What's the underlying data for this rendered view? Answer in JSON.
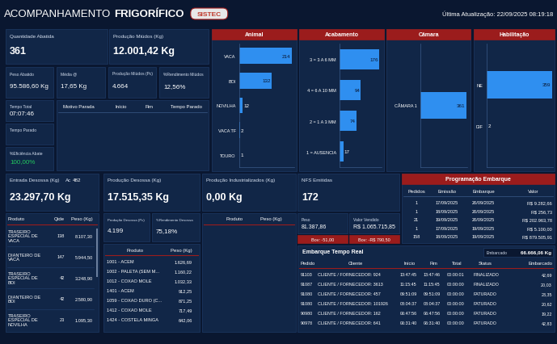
{
  "header": {
    "title": [
      "ACOMPANHAMENTO",
      "FRIGORÍFICO"
    ],
    "logo": "SISTEC",
    "last_update": "Última Atualização: 22/09/2025 08:19:18"
  },
  "cards": [
    {
      "label": "Quantidade Abatida",
      "value": 361
    },
    {
      "label": "Produção Miúdos (Kg)",
      "value": "12.001,42 Kg"
    },
    {
      "label": "Peso Abatido",
      "value": "95.586,60 Kg"
    },
    {
      "label": "Média @",
      "value": "17,65 Kg"
    },
    {
      "label": "Produção Miúdos (Pc)",
      "value": "4.664"
    },
    {
      "label": "%Rendimento Miúdos",
      "value": "12,56%"
    },
    {
      "label": "Tempo Total",
      "value": "07:07:46"
    },
    {
      "label": "Tempo Parado"
    },
    {
      "label": "%Eficiência Abate",
      "value": "100,00%",
      "color": "#22c55e"
    },
    {
      "label": "Entrada Desossa (Kg)",
      "value": "23.297,70 Kg",
      "note": "Ac",
      "note_value": 482
    },
    {
      "label": "Produção Desossa (Kg)",
      "value": "17.515,35 Kg"
    },
    {
      "label": "Produção Industrializados (Kg)",
      "value": "0,00 Kg"
    },
    {
      "label": "NFS Emitidas",
      "value": 172
    },
    {
      "label": "Produção Desossa (Pc)",
      "value": "4.199"
    },
    {
      "label": "%Rendimento Desossa",
      "value": "75,18%"
    },
    {
      "label": "Peso",
      "value": "81.387,86"
    },
    {
      "label": "Valor Vendido",
      "value": "R$ 1.065.715,85"
    }
  ],
  "alerts": [
    "Bov: -51,00",
    "Bov: -R$ 790,50"
  ],
  "chart_data": [
    {
      "type": "bar",
      "title": "Animal",
      "orientation": "horizontal",
      "data_labels": true,
      "tick_labels": "y",
      "color": "#2f8ff0",
      "categories": [
        "VACA",
        "BOI",
        "NOVILHA",
        "VACA TF",
        "TOURO"
      ],
      "values": [
        214,
        132,
        12,
        2,
        1
      ],
      "xlim": [
        0,
        225
      ]
    },
    {
      "type": "bar",
      "title": "Acabamento",
      "orientation": "horizontal",
      "data_labels": true,
      "tick_labels": "y",
      "color": "#2f8ff0",
      "categories": [
        "3 = 3 A 6 MM",
        "4 = 6 A 10 MM",
        "2 = 1 A 3 MM",
        "1 = AUSENCIA"
      ],
      "values": [
        176,
        94,
        74,
        17
      ],
      "xlim": [
        0,
        185
      ]
    },
    {
      "type": "bar",
      "title": "Câmara",
      "orientation": "horizontal",
      "data_labels": true,
      "tick_labels": "y",
      "color": "#2f8ff0",
      "categories": [
        "CÂMARA 1"
      ],
      "values": [
        361
      ],
      "xlim": [
        0,
        370
      ]
    },
    {
      "type": "bar",
      "title": "Habilitação",
      "orientation": "horizontal",
      "data_labels": true,
      "tick_labels": "y",
      "color": "#2f8ff0",
      "categories": [
        "NE",
        "DIF"
      ],
      "values": [
        359,
        2
      ],
      "xlim": [
        0,
        365
      ]
    }
  ],
  "tables": {
    "paradas": {
      "columns": [
        "Motivo Parada",
        "Início",
        "Fim",
        "Tempo Parado"
      ],
      "rows": []
    },
    "produtos_desossa": {
      "columns": [
        "Produto",
        "Qtde",
        "Peso (Kg)"
      ],
      "rows": [
        [
          "TRASEIRO ESPECIAL DE VACA",
          138,
          "8.107,30"
        ],
        [
          "DIANTEIRO DE VACA",
          147,
          "5.944,50"
        ],
        [
          "TRASEIRO ESPECIAL DE BOI",
          42,
          "3.248,90"
        ],
        [
          "DIANTEIRO DE BOI",
          42,
          "2.580,90"
        ],
        [
          "TRASEIRO ESPECIAL DE NOVILHA",
          23,
          "1.095,30"
        ]
      ]
    },
    "cortes": {
      "columns": [
        "Produto",
        "Peso (Kg)"
      ],
      "rows": [
        [
          "1001 - ACEM",
          "1.626,69"
        ],
        [
          "1002 - PALETA (SEM M...",
          "1.160,22"
        ],
        [
          "1012 - COXAO MOLE",
          "1.032,33"
        ],
        [
          "1401 - ACEM",
          "912,25"
        ],
        [
          "1059 - COXAO DURO (C...",
          "871,25"
        ],
        [
          "1412 - COXAO MOLE",
          "717,49"
        ],
        [
          "1424 - COSTELA MINGA",
          "642,06"
        ]
      ]
    },
    "industrializados": {
      "columns": [
        "Produto",
        "Peso (Kg)"
      ],
      "rows": []
    },
    "programacao_embarque": {
      "title": "Programação Embarque",
      "columns": [
        "Pedidos",
        "Emissão",
        "Embarque",
        "Valor"
      ],
      "rows": [
        [
          1,
          "17/09/2025",
          "20/09/2025",
          "R$ 9.282,66"
        ],
        [
          1,
          "18/09/2025",
          "20/09/2025",
          "R$ 256,73"
        ],
        [
          21,
          "19/09/2025",
          "20/09/2025",
          "R$ 202.963,78"
        ],
        [
          1,
          "17/09/2025",
          "19/09/2025",
          "R$ 5.100,00"
        ],
        [
          158,
          "18/09/2025",
          "19/09/2025",
          "R$ 879.505,91"
        ]
      ]
    },
    "embarque_tempo_real": {
      "title": "Embarque Tempo Real",
      "total_label": "Embarcado",
      "total": "66.666,06 Kg",
      "columns": [
        "Pedido",
        "Cliente",
        "Início",
        "Fim",
        "Total",
        "Status",
        "Embarcado"
      ],
      "rows": [
        [
          91103,
          "CLIENTE / FORNECEDOR: 924",
          "13:47:45",
          "13:47:46",
          "00:00:01",
          "FINALIZADO",
          "42,69"
        ],
        [
          91087,
          "CLIENTE / FORNECEDOR: 3613",
          "11:15:45",
          "11:15:45",
          "00:00:00",
          "FINALIZADO",
          "20,03"
        ],
        [
          91080,
          "CLIENTE / FORNECEDOR: 457",
          "09:51:09",
          "09:51:09",
          "00:00:00",
          "FATURADO",
          "23,35"
        ],
        [
          91080,
          "CLIENTE / FORNECEDOR: 101926",
          "08:04:37",
          "08:04:37",
          "00:00:00",
          "FATURADO",
          "20,62"
        ],
        [
          90980,
          "CLIENTE / FORNECEDOR: 162",
          "06:47:56",
          "06:47:56",
          "00:00:00",
          "FATURADO",
          "19,22"
        ],
        [
          90978,
          "CLIENTE / FORNECEDOR: 641",
          "06:31:40",
          "06:31:40",
          "00:00:00",
          "FATURADO",
          "42,83"
        ]
      ]
    }
  }
}
